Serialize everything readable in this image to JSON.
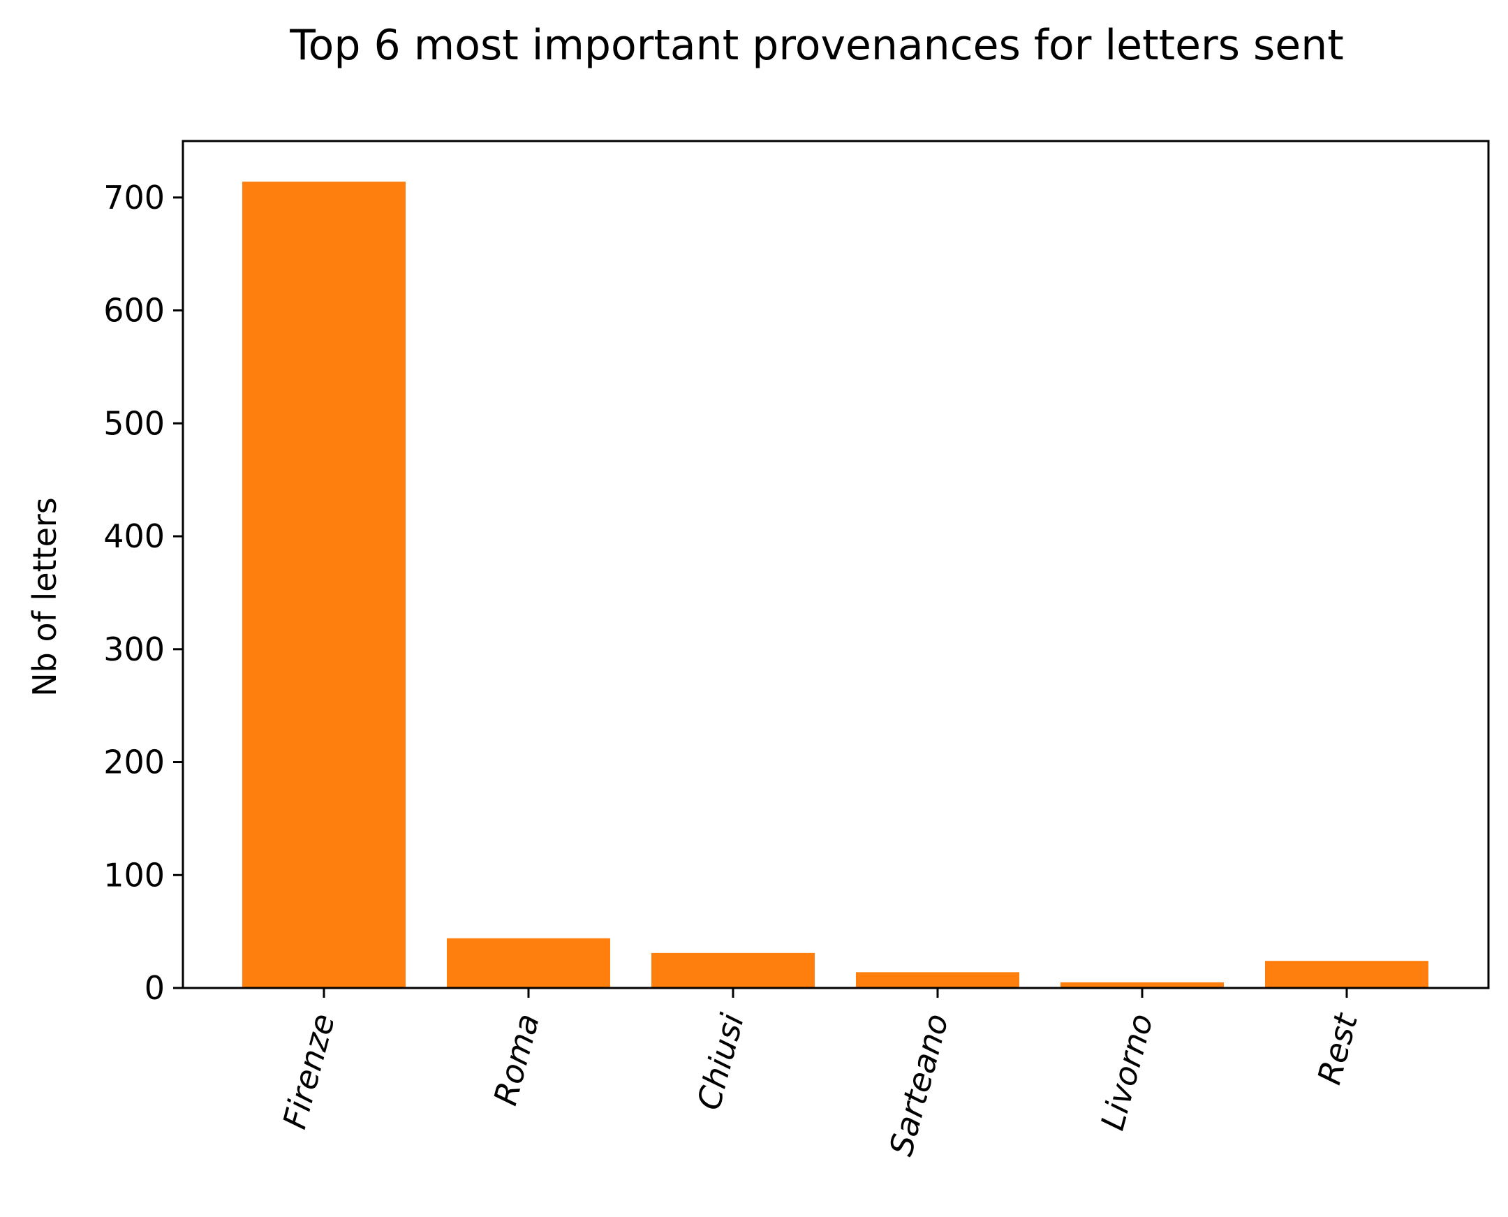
{
  "chart_data": {
    "type": "bar",
    "title": "Top 6 most important provenances for letters sent",
    "xlabel": "",
    "ylabel": "Nb of letters",
    "categories": [
      "Firenze",
      "Roma",
      "Chiusi",
      "Sarteano",
      "Livorno",
      "Rest"
    ],
    "values": [
      714,
      44,
      31,
      14,
      5,
      24
    ],
    "ylim": [
      0,
      750
    ],
    "yticks": [
      0,
      100,
      200,
      300,
      400,
      500,
      600,
      700
    ],
    "bar_color": "#ff7f0e",
    "grid": false,
    "legend": "none",
    "xtick_rotation_deg": 75
  }
}
